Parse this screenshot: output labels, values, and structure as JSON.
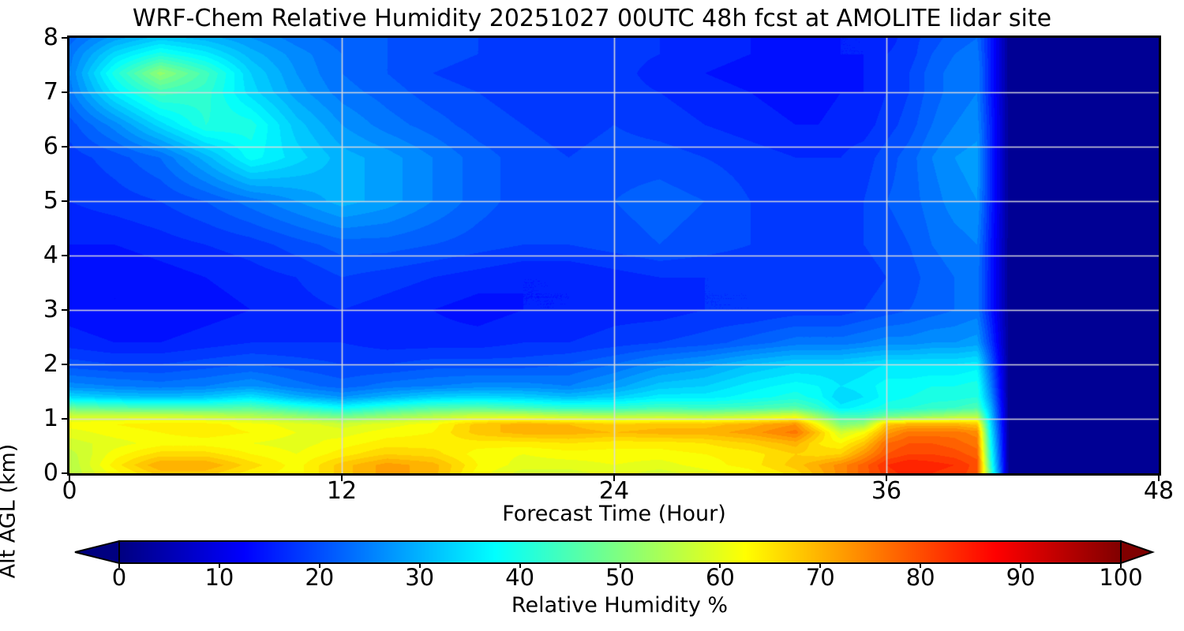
{
  "chart": {
    "title": "WRF-Chem Relative Humidity 20251027 00UTC 48h fcst at AMOLITE lidar site",
    "x_axis": {
      "label": "Forecast Time (Hour)",
      "ticks": [
        0,
        12,
        24,
        36,
        48
      ],
      "range": [
        0,
        48
      ]
    },
    "y_axis": {
      "label": "Alt AGL (km)",
      "ticks": [
        0,
        1,
        2,
        3,
        4,
        5,
        6,
        7,
        8
      ],
      "range": [
        0,
        8
      ]
    },
    "colorbar": {
      "label": "Relative Humidity %",
      "ticks": [
        0,
        10,
        20,
        30,
        40,
        50,
        60,
        70,
        80,
        90,
        100
      ],
      "range": [
        0,
        100
      ],
      "colormap": "jet",
      "extend": "both",
      "under_color": "#000080",
      "over_color": "#800000"
    },
    "grid_color": "#dcdcdc",
    "grid_on": true
  },
  "chart_data": {
    "type": "heatmap",
    "title": "WRF-Chem Relative Humidity 20251027 00UTC 48h fcst at AMOLITE lidar site",
    "xlabel": "Forecast Time (Hour)",
    "ylabel": "Alt AGL (km)",
    "value_label": "Relative Humidity %",
    "xlim": [
      0,
      48
    ],
    "ylim": [
      0,
      8
    ],
    "vmin": 0,
    "vmax": 100,
    "x_hours": [
      0,
      2,
      4,
      6,
      8,
      10,
      12,
      14,
      16,
      18,
      20,
      22,
      24,
      26,
      28,
      30,
      32,
      33,
      34,
      35,
      36,
      37,
      38,
      39,
      40,
      40.6,
      41.4,
      42,
      44,
      46,
      48
    ],
    "y_alts_km": [
      0,
      0.15,
      0.35,
      0.55,
      0.75,
      0.9,
      1.05,
      1.2,
      1.4,
      1.6,
      2.0,
      2.4,
      3.0,
      3.6,
      4.2,
      5.0,
      5.8,
      6.4,
      7.0,
      7.35,
      7.7,
      8.0
    ],
    "rh_values_rows_by_alt": [
      [
        55,
        62,
        68,
        68,
        64,
        62,
        68,
        72,
        70,
        62,
        58,
        58,
        60,
        58,
        60,
        62,
        66,
        70,
        74,
        78,
        82,
        84,
        83,
        82,
        80,
        45,
        2,
        2,
        2,
        2,
        2
      ],
      [
        55,
        64,
        71,
        71,
        66,
        62,
        68,
        72,
        70,
        63,
        60,
        60,
        61,
        60,
        62,
        64,
        68,
        71,
        74,
        78,
        83,
        85,
        84,
        83,
        80,
        42,
        2,
        2,
        2,
        2,
        2
      ],
      [
        56,
        62,
        66,
        66,
        63,
        61,
        64,
        67,
        66,
        62,
        61,
        62,
        62,
        62,
        63,
        64,
        67,
        66,
        67,
        73,
        79,
        81,
        81,
        80,
        78,
        40,
        2,
        2,
        2,
        2,
        2
      ],
      [
        58,
        60,
        62,
        62,
        61,
        60,
        62,
        64,
        64,
        64,
        64,
        65,
        64,
        64,
        65,
        67,
        70,
        65,
        63,
        68,
        77,
        79,
        79,
        78,
        76,
        38,
        2,
        2,
        2,
        2,
        2
      ],
      [
        60,
        62,
        63,
        64,
        63,
        61,
        60,
        62,
        63,
        68,
        70,
        70,
        69,
        70,
        70,
        72,
        76,
        68,
        58,
        62,
        72,
        76,
        76,
        76,
        74,
        36,
        2,
        2,
        2,
        2,
        2
      ],
      [
        62,
        63,
        64,
        64,
        62,
        60,
        58,
        60,
        62,
        68,
        70,
        69,
        67,
        68,
        68,
        70,
        73,
        62,
        50,
        52,
        68,
        70,
        70,
        70,
        68,
        34,
        2,
        2,
        2,
        2,
        2
      ],
      [
        58,
        58,
        58,
        57,
        55,
        52,
        48,
        52,
        55,
        58,
        58,
        56,
        55,
        56,
        55,
        57,
        60,
        52,
        44,
        44,
        48,
        50,
        52,
        54,
        55,
        32,
        2,
        2,
        2,
        2,
        2
      ],
      [
        48,
        46,
        45,
        45,
        46,
        42,
        38,
        42,
        45,
        46,
        44,
        42,
        42,
        44,
        43,
        44,
        46,
        42,
        36,
        38,
        40,
        41,
        42,
        43,
        45,
        30,
        2,
        2,
        2,
        2,
        2
      ],
      [
        34,
        32,
        31,
        32,
        35,
        30,
        27,
        30,
        33,
        34,
        33,
        31,
        33,
        36,
        36,
        38,
        40,
        38,
        33,
        35,
        38,
        39,
        40,
        40,
        41,
        27,
        2,
        2,
        2,
        2,
        2
      ],
      [
        26,
        25,
        24,
        25,
        27,
        24,
        22,
        24,
        25,
        26,
        26,
        25,
        28,
        32,
        33,
        36,
        38,
        37,
        35,
        36,
        38,
        38,
        39,
        39,
        40,
        25,
        2,
        2,
        2,
        2,
        2
      ],
      [
        20,
        19,
        19,
        20,
        21,
        20,
        19,
        19,
        20,
        20,
        20,
        21,
        23,
        26,
        28,
        31,
        33,
        33,
        33,
        34,
        35,
        35,
        35,
        35,
        36,
        22,
        2,
        2,
        2,
        2,
        2
      ],
      [
        16,
        15,
        15,
        16,
        17,
        17,
        17,
        16,
        16,
        16,
        17,
        17,
        18,
        19,
        20,
        22,
        24,
        24,
        24,
        25,
        26,
        26,
        27,
        27,
        28,
        18,
        2,
        2,
        2,
        2,
        2
      ],
      [
        14,
        13,
        13,
        14,
        15,
        16,
        17,
        16,
        15,
        14,
        15,
        15,
        16,
        16,
        17,
        17,
        18,
        18,
        18,
        19,
        20,
        21,
        22,
        23,
        24,
        15,
        2,
        2,
        2,
        2,
        2
      ],
      [
        13,
        13,
        14,
        15,
        16,
        17,
        19,
        18,
        17,
        16,
        15,
        15,
        16,
        17,
        17,
        17,
        17,
        17,
        18,
        18,
        19,
        20,
        22,
        23,
        24,
        15,
        2,
        2,
        2,
        2,
        2
      ],
      [
        15,
        15,
        16,
        17,
        18,
        20,
        22,
        22,
        21,
        20,
        19,
        19,
        20,
        21,
        20,
        19,
        18,
        18,
        18,
        19,
        20,
        21,
        23,
        24,
        25,
        15,
        2,
        2,
        2,
        2,
        2
      ],
      [
        17,
        18,
        19,
        21,
        24,
        27,
        30,
        28,
        25,
        22,
        20,
        20,
        21,
        22,
        21,
        19,
        18,
        18,
        18,
        19,
        21,
        22,
        24,
        26,
        27,
        16,
        2,
        2,
        2,
        2,
        2
      ],
      [
        18,
        20,
        23,
        30,
        38,
        34,
        30,
        28,
        25,
        22,
        20,
        19,
        20,
        20,
        19,
        18,
        17,
        17,
        17,
        18,
        20,
        22,
        25,
        27,
        28,
        16,
        2,
        2,
        2,
        2,
        2
      ],
      [
        20,
        26,
        34,
        41,
        40,
        32,
        27,
        24,
        22,
        20,
        19,
        18,
        19,
        18,
        17,
        16,
        15,
        15,
        16,
        16,
        18,
        20,
        23,
        25,
        26,
        16,
        2,
        2,
        2,
        2,
        2
      ],
      [
        24,
        36,
        44,
        42,
        34,
        28,
        24,
        22,
        20,
        19,
        18,
        17,
        18,
        17,
        16,
        15,
        14,
        14,
        15,
        15,
        17,
        19,
        22,
        24,
        25,
        15,
        2,
        2,
        2,
        2,
        2
      ],
      [
        25,
        40,
        52,
        44,
        33,
        27,
        23,
        21,
        19,
        18,
        17,
        17,
        18,
        16,
        15,
        14,
        13,
        13,
        14,
        15,
        17,
        19,
        22,
        24,
        25,
        15,
        2,
        2,
        2,
        2,
        2
      ],
      [
        24,
        34,
        40,
        36,
        30,
        26,
        23,
        21,
        20,
        19,
        18,
        17,
        18,
        17,
        16,
        15,
        14,
        14,
        15,
        15,
        17,
        18,
        21,
        23,
        24,
        15,
        2,
        2,
        2,
        2,
        2
      ],
      [
        22,
        28,
        32,
        30,
        27,
        24,
        22,
        21,
        20,
        19,
        18,
        18,
        19,
        17,
        16,
        15,
        14,
        14,
        15,
        15,
        16,
        18,
        20,
        22,
        23,
        15,
        2,
        2,
        2,
        2,
        2
      ]
    ]
  }
}
